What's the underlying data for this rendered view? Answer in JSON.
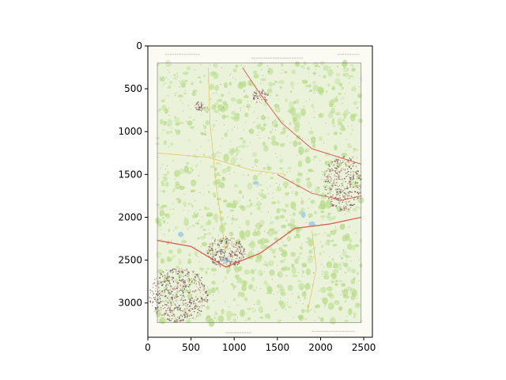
{
  "figure": {
    "x_axis": {
      "limits": [
        0,
        2600
      ],
      "ticks": [
        0,
        500,
        1000,
        1500,
        2000,
        2500
      ],
      "tick_labels": [
        "0",
        "500",
        "1000",
        "1500",
        "2000",
        "2500"
      ]
    },
    "y_axis": {
      "limits": [
        0,
        3400
      ],
      "inverted": true,
      "ticks": [
        0,
        500,
        1000,
        1500,
        2000,
        2500,
        3000
      ],
      "tick_labels": [
        "0",
        "500",
        "1000",
        "1500",
        "2000",
        "2500",
        "3000"
      ]
    }
  },
  "map_image": {
    "kind": "scanned topographic map sheet",
    "colors": {
      "sheet": "#fbfbf3",
      "vegetation": "#b8dc8a",
      "vegetation_light": "#dcecc2",
      "settlement": "#c9a49a",
      "settlement_dark": "#7a6a6a",
      "road": "#d8554a",
      "road_minor": "#e6c25a",
      "water": "#a8d0ec",
      "frame": "#777777"
    }
  }
}
